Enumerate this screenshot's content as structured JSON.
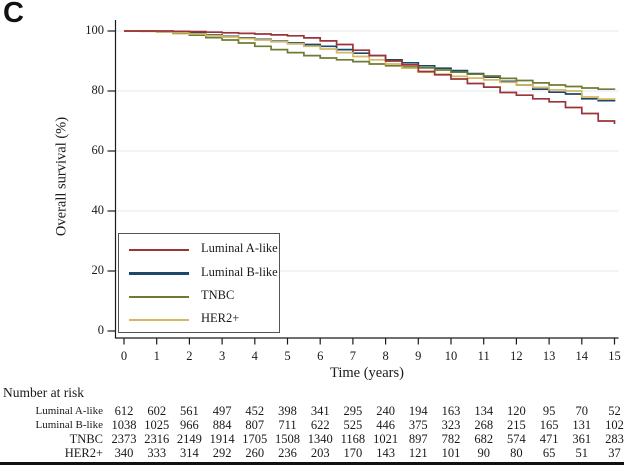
{
  "panel_label": "C",
  "axes": {
    "y_label": "Overall survival (%)",
    "x_label": "Time (years)",
    "y_ticks": [
      100,
      80,
      60,
      40,
      20,
      0
    ],
    "x_ticks": [
      0,
      1,
      2,
      3,
      4,
      5,
      6,
      7,
      8,
      9,
      10,
      11,
      12,
      13,
      14,
      15
    ]
  },
  "legend": {
    "items": [
      {
        "label": "Luminal A-like",
        "color": "#9b3338"
      },
      {
        "label": "Luminal B-like",
        "color": "#1d486c"
      },
      {
        "label": "TNBC",
        "color": "#6e7b33"
      },
      {
        "label": "HER2+",
        "color": "#d4b863"
      }
    ]
  },
  "chart_data": {
    "type": "line",
    "subtype": "kaplan-meier-step",
    "title": "",
    "xlabel": "Time (years)",
    "ylabel": "Overall survival (%)",
    "xlim": [
      0,
      15
    ],
    "ylim": [
      0,
      100
    ],
    "grid": "horizontal-light",
    "legend_position": "inside-lower-left",
    "series": [
      {
        "name": "Luminal A-like",
        "color": "#9b3338",
        "points": [
          [
            0,
            100
          ],
          [
            0.5,
            100
          ],
          [
            1,
            100
          ],
          [
            1.5,
            99.9
          ],
          [
            2,
            99.8
          ],
          [
            2.5,
            99.6
          ],
          [
            3,
            99.4
          ],
          [
            3.5,
            99.2
          ],
          [
            4,
            99
          ],
          [
            4.5,
            98.7
          ],
          [
            5,
            98.4
          ],
          [
            5.5,
            97.7
          ],
          [
            6,
            96.7
          ],
          [
            6.5,
            95.5
          ],
          [
            7,
            93.6
          ],
          [
            7.5,
            91.8
          ],
          [
            8,
            90
          ],
          [
            8.5,
            88.7
          ],
          [
            9,
            86.5
          ],
          [
            9.5,
            85.4
          ],
          [
            10,
            84
          ],
          [
            10.5,
            82.5
          ],
          [
            11,
            81.3
          ],
          [
            11.5,
            79.5
          ],
          [
            12,
            78.6
          ],
          [
            12.5,
            77.4
          ],
          [
            13,
            76.4
          ],
          [
            13.5,
            74.5
          ],
          [
            14,
            72.5
          ],
          [
            14.5,
            70
          ],
          [
            15,
            69
          ]
        ]
      },
      {
        "name": "Luminal B-like",
        "color": "#1d486c",
        "points": [
          [
            0,
            100
          ],
          [
            0.5,
            100
          ],
          [
            1,
            99.9
          ],
          [
            1.5,
            99.6
          ],
          [
            2,
            99.2
          ],
          [
            2.5,
            98.7
          ],
          [
            3,
            98.2
          ],
          [
            3.5,
            97.7
          ],
          [
            4,
            97.2
          ],
          [
            4.5,
            96.6
          ],
          [
            5,
            96
          ],
          [
            5.5,
            95.5
          ],
          [
            6,
            94.9
          ],
          [
            6.5,
            93.8
          ],
          [
            7,
            92.6
          ],
          [
            7.5,
            91.8
          ],
          [
            8,
            90.4
          ],
          [
            8.5,
            89.4
          ],
          [
            9,
            88.4
          ],
          [
            9.5,
            87.6
          ],
          [
            10,
            86.8
          ],
          [
            10.5,
            85.8
          ],
          [
            11,
            84.6
          ],
          [
            11.5,
            83.2
          ],
          [
            12,
            82
          ],
          [
            12.5,
            80.6
          ],
          [
            13,
            79.6
          ],
          [
            13.5,
            79
          ],
          [
            14,
            77.4
          ],
          [
            14.5,
            76.8
          ],
          [
            15,
            76.5
          ]
        ]
      },
      {
        "name": "TNBC",
        "color": "#6e7b33",
        "points": [
          [
            0,
            100
          ],
          [
            0.5,
            99.9
          ],
          [
            1,
            99.7
          ],
          [
            1.5,
            99.2
          ],
          [
            2,
            98.6
          ],
          [
            2.5,
            97.8
          ],
          [
            3,
            97
          ],
          [
            3.5,
            96
          ],
          [
            4,
            94.9
          ],
          [
            4.5,
            93.8
          ],
          [
            5,
            92.8
          ],
          [
            5.5,
            91.8
          ],
          [
            6,
            91
          ],
          [
            6.5,
            90.4
          ],
          [
            7,
            89.8
          ],
          [
            7.5,
            89
          ],
          [
            8,
            88.4
          ],
          [
            8.5,
            88
          ],
          [
            9,
            87.7
          ],
          [
            9.5,
            87
          ],
          [
            10,
            86.3
          ],
          [
            10.5,
            85.6
          ],
          [
            11,
            85
          ],
          [
            11.5,
            84.2
          ],
          [
            12,
            83.5
          ],
          [
            12.5,
            82.7
          ],
          [
            13,
            82
          ],
          [
            13.5,
            81.5
          ],
          [
            14,
            81
          ],
          [
            14.5,
            80.6
          ],
          [
            15,
            80.4
          ]
        ]
      },
      {
        "name": "HER2+",
        "color": "#d4b863",
        "points": [
          [
            0,
            100
          ],
          [
            0.5,
            100
          ],
          [
            1,
            99.8
          ],
          [
            1.5,
            99.4
          ],
          [
            2,
            99
          ],
          [
            2.5,
            98.5
          ],
          [
            3,
            98
          ],
          [
            3.5,
            97.5
          ],
          [
            4,
            97
          ],
          [
            4.5,
            96.4
          ],
          [
            5,
            95.7
          ],
          [
            5.5,
            94.9
          ],
          [
            6,
            94
          ],
          [
            6.5,
            92.8
          ],
          [
            7,
            91.5
          ],
          [
            7.5,
            90.4
          ],
          [
            8,
            89
          ],
          [
            8.5,
            87.6
          ],
          [
            9,
            86.3
          ],
          [
            9.5,
            85.6
          ],
          [
            10,
            84.9
          ],
          [
            10.5,
            84.3
          ],
          [
            11,
            83.7
          ],
          [
            11.5,
            82.9
          ],
          [
            12,
            82
          ],
          [
            12.5,
            81.2
          ],
          [
            13,
            80.4
          ],
          [
            13.5,
            80
          ],
          [
            14,
            78
          ],
          [
            14.5,
            77.3
          ],
          [
            15,
            77
          ]
        ]
      }
    ]
  },
  "risk_table": {
    "title": "Number at risk",
    "time_points": [
      0,
      1,
      2,
      3,
      4,
      5,
      6,
      7,
      8,
      9,
      10,
      11,
      12,
      13,
      14,
      15
    ],
    "rows": [
      {
        "label": "Luminal A-like",
        "values": [
          612,
          602,
          561,
          497,
          452,
          398,
          341,
          295,
          240,
          194,
          163,
          134,
          120,
          95,
          70,
          52
        ]
      },
      {
        "label": "Luminal B-like",
        "values": [
          1038,
          1025,
          966,
          884,
          807,
          711,
          622,
          525,
          446,
          375,
          323,
          268,
          215,
          165,
          131,
          102
        ]
      },
      {
        "label": "TNBC",
        "values": [
          2373,
          2316,
          2149,
          1914,
          1705,
          1508,
          1340,
          1168,
          1021,
          897,
          782,
          682,
          574,
          471,
          361,
          283
        ]
      },
      {
        "label": "HER2+",
        "values": [
          340,
          333,
          314,
          292,
          260,
          236,
          203,
          170,
          143,
          121,
          101,
          90,
          80,
          65,
          51,
          37
        ]
      }
    ]
  },
  "style_colors": {
    "gridline": "#e3e9ec",
    "axis": "#1a1a1a",
    "legend_border": "#555555",
    "bottom_rule": "#111111"
  }
}
